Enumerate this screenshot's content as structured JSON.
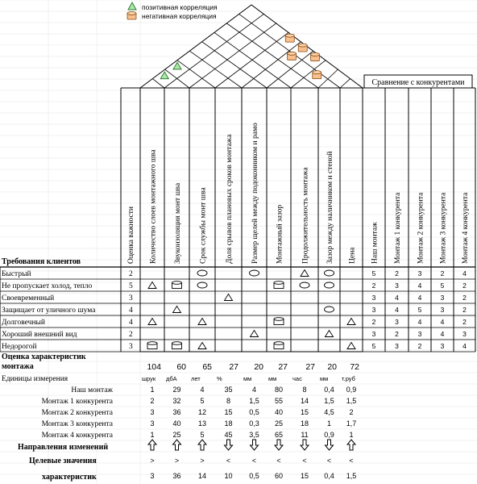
{
  "legend": {
    "positive": "позитивная корреляция",
    "negative": "негативная корреляция"
  },
  "competitor_header": "Сравнение с конкурентами",
  "customer_requirements_header": "Требования клиентов",
  "importance_header": "Оценка важности",
  "tech_headers": [
    "Количество слоев монтажного шва",
    "Звукоизоляция монт шва",
    "Срок службы монт шва",
    "Доля срывов плановых сроков монтажа",
    "Размер щелей между подоконником и рамо",
    "Монтажный зазор",
    "Продолжительность монтажа",
    "Зазор между наличником и стеной",
    "Цена"
  ],
  "competitor_headers": [
    "Наш монтаж",
    "Монтаж 1 конкурента",
    "Монтаж 2 конкурента",
    "Монтаж 3 конкурента",
    "Монтаж 4 конкурента"
  ],
  "requirements": [
    {
      "label": "Быстрый",
      "importance": "2",
      "scores": [
        "5",
        "2",
        "3",
        "2",
        "4"
      ]
    },
    {
      "label": "Не пропускает холод, тепло",
      "importance": "5",
      "scores": [
        "2",
        "3",
        "4",
        "5",
        "2"
      ]
    },
    {
      "label": "Своевременный",
      "importance": "3",
      "scores": [
        "3",
        "4",
        "4",
        "3",
        "2"
      ]
    },
    {
      "label": "Защищает от уличного шума",
      "importance": "4",
      "scores": [
        "3",
        "4",
        "5",
        "3",
        "2"
      ]
    },
    {
      "label": "Долговечный",
      "importance": "4",
      "scores": [
        "2",
        "3",
        "4",
        "4",
        "2"
      ]
    },
    {
      "label": "Хороший внешний вид",
      "importance": "2",
      "scores": [
        "3",
        "2",
        "3",
        "4",
        "3"
      ]
    },
    {
      "label": "Недорогой",
      "importance": "3",
      "scores": [
        "5",
        "3",
        "2",
        "3",
        "4"
      ]
    }
  ],
  "relationship_marks": [
    {
      "row": 0,
      "col": 2,
      "sym": "ellipse"
    },
    {
      "row": 0,
      "col": 4,
      "sym": "ellipse"
    },
    {
      "row": 0,
      "col": 6,
      "sym": "triangle"
    },
    {
      "row": 0,
      "col": 7,
      "sym": "ellipse"
    },
    {
      "row": 1,
      "col": 0,
      "sym": "triangle"
    },
    {
      "row": 1,
      "col": 1,
      "sym": "cylinder"
    },
    {
      "row": 1,
      "col": 2,
      "sym": "ellipse"
    },
    {
      "row": 1,
      "col": 5,
      "sym": "cylinder"
    },
    {
      "row": 1,
      "col": 6,
      "sym": "ellipse"
    },
    {
      "row": 1,
      "col": 7,
      "sym": "ellipse"
    },
    {
      "row": 2,
      "col": 3,
      "sym": "triangle"
    },
    {
      "row": 3,
      "col": 1,
      "sym": "triangle"
    },
    {
      "row": 3,
      "col": 7,
      "sym": "ellipse"
    },
    {
      "row": 4,
      "col": 0,
      "sym": "triangle"
    },
    {
      "row": 4,
      "col": 2,
      "sym": "triangle"
    },
    {
      "row": 4,
      "col": 5,
      "sym": "cylinder"
    },
    {
      "row": 4,
      "col": 8,
      "sym": "triangle"
    },
    {
      "row": 5,
      "col": 4,
      "sym": "triangle"
    },
    {
      "row": 5,
      "col": 7,
      "sym": "triangle"
    },
    {
      "row": 6,
      "col": 0,
      "sym": "cylinder"
    },
    {
      "row": 6,
      "col": 1,
      "sym": "cylinder"
    },
    {
      "row": 6,
      "col": 2,
      "sym": "triangle"
    },
    {
      "row": 6,
      "col": 5,
      "sym": "cylinder"
    },
    {
      "row": 6,
      "col": 8,
      "sym": "triangle"
    }
  ],
  "roof_marks": [
    {
      "i": 0,
      "j": 1,
      "sym": "triangle"
    },
    {
      "i": 0,
      "j": 2,
      "sym": "triangle"
    },
    {
      "i": 3,
      "j": 8,
      "sym": "cylinder"
    },
    {
      "i": 4,
      "j": 7,
      "sym": "cylinder"
    },
    {
      "i": 4,
      "j": 8,
      "sym": "cylinder"
    },
    {
      "i": 5,
      "j": 8,
      "sym": "cylinder"
    },
    {
      "i": 6,
      "j": 7,
      "sym": "cylinder"
    }
  ],
  "evaluation": {
    "label_top": "Оценка характеристик",
    "label_bottom": "монтажа",
    "values": [
      "104",
      "60",
      "65",
      "27",
      "20",
      "27",
      "27",
      "20",
      "72"
    ]
  },
  "units": {
    "label": "Единицы измерения",
    "values": [
      "шрук",
      "дбА",
      "лет",
      "%",
      "мм",
      "мм",
      "час",
      "мм",
      "т.руб"
    ]
  },
  "benchmarks": [
    {
      "label": "Наш монтаж",
      "values": [
        "1",
        "29",
        "4",
        "35",
        "4",
        "80",
        "8",
        "0,4",
        "0,9"
      ]
    },
    {
      "label": "Монтаж 1 конкурента",
      "values": [
        "2",
        "32",
        "5",
        "8",
        "1,5",
        "55",
        "14",
        "1,5",
        "1,5"
      ]
    },
    {
      "label": "Монтаж 2 конкурента",
      "values": [
        "3",
        "36",
        "12",
        "15",
        "0,5",
        "40",
        "15",
        "4,5",
        "2"
      ]
    },
    {
      "label": "Монтаж 3 конкурента",
      "values": [
        "3",
        "40",
        "13",
        "18",
        "0,3",
        "25",
        "18",
        "1",
        "1,7"
      ]
    },
    {
      "label": "Монтаж 4 конкурента",
      "values": [
        "1",
        "25",
        "5",
        "45",
        "3,5",
        "65",
        "11",
        "0,9",
        "1"
      ]
    }
  ],
  "direction": {
    "label": "Направления изменений",
    "values": [
      "up",
      "up",
      "up",
      "down",
      "down",
      "down",
      "down",
      "down",
      "up"
    ]
  },
  "targets": {
    "label": "Целевые значения",
    "values": [
      ">",
      ">",
      ">",
      "<",
      "<",
      "<",
      "<",
      "<",
      "<"
    ]
  },
  "target_values": {
    "label": "характеристик",
    "values": [
      "3",
      "36",
      "14",
      "10",
      "0,5",
      "60",
      "15",
      "0,4",
      "1,5"
    ]
  },
  "colors": {
    "positive_fill": "#aee8a8",
    "positive_stroke": "#2e7d32",
    "negative_fill": "#f7c08e",
    "negative_stroke": "#8a4a12"
  }
}
